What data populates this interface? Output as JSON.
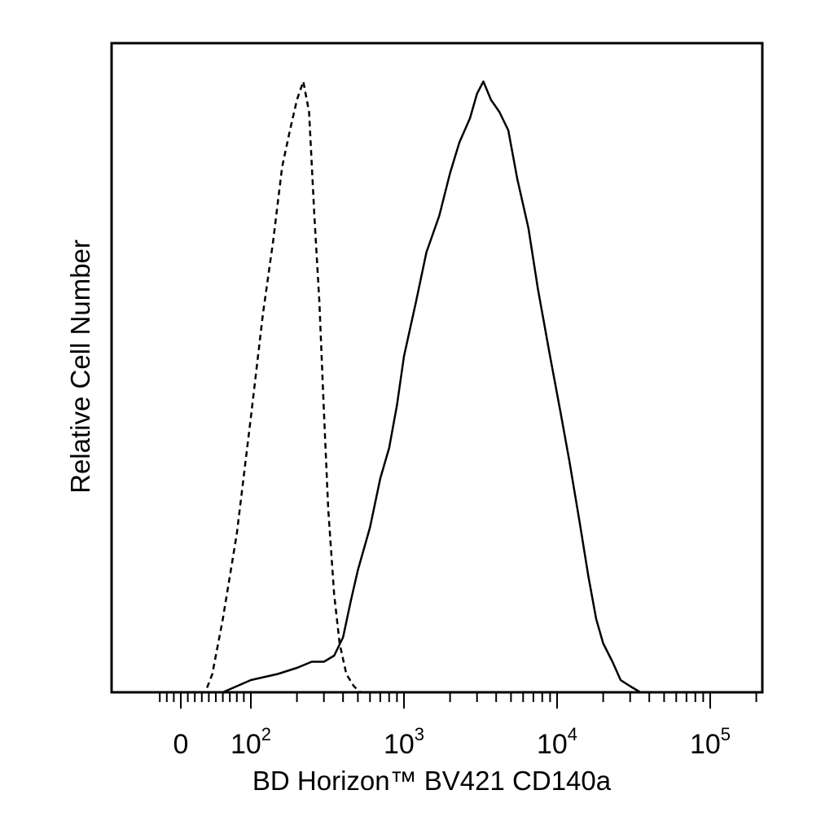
{
  "chart_data": {
    "type": "line",
    "title": "",
    "xlabel": "BD Horizon™ BV421 CD140a",
    "ylabel": "Relative Cell Number",
    "x_scale": "biexponential",
    "xlim": [
      -40,
      250000
    ],
    "ylim": [
      0,
      1.0
    ],
    "grid": false,
    "legend": "none",
    "x_tick_labels": [
      {
        "value": 0,
        "base": "0",
        "exp": ""
      },
      {
        "value": 100,
        "base": "10",
        "exp": "2"
      },
      {
        "value": 1000,
        "base": "10",
        "exp": "3"
      },
      {
        "value": 10000,
        "base": "10",
        "exp": "4"
      },
      {
        "value": 100000,
        "base": "10",
        "exp": "5"
      }
    ],
    "series": [
      {
        "style": "dashed",
        "color": "#000000",
        "x": [
          35,
          45,
          60,
          80,
          100,
          120,
          140,
          160,
          180,
          200,
          220,
          240,
          260,
          280,
          300,
          320,
          350,
          380,
          420,
          470,
          520,
          600
        ],
        "y": [
          0.0,
          0.03,
          0.12,
          0.26,
          0.45,
          0.62,
          0.74,
          0.86,
          0.92,
          0.97,
          1.0,
          0.95,
          0.78,
          0.64,
          0.46,
          0.3,
          0.16,
          0.08,
          0.03,
          0.01,
          0.0,
          0.0
        ]
      },
      {
        "style": "solid",
        "color": "#000000",
        "x": [
          60,
          100,
          150,
          200,
          250,
          300,
          350,
          400,
          450,
          500,
          600,
          700,
          800,
          900,
          1000,
          1200,
          1400,
          1700,
          2000,
          2300,
          2700,
          3000,
          3300,
          3700,
          4200,
          4800,
          5500,
          6500,
          7500,
          9000,
          10500,
          12000,
          14000,
          16000,
          18000,
          20000,
          23000,
          26000,
          30000,
          35000,
          40000
        ],
        "y": [
          0.0,
          0.02,
          0.03,
          0.04,
          0.05,
          0.05,
          0.06,
          0.09,
          0.15,
          0.2,
          0.27,
          0.35,
          0.4,
          0.47,
          0.55,
          0.64,
          0.72,
          0.78,
          0.85,
          0.9,
          0.94,
          0.98,
          1.0,
          0.97,
          0.95,
          0.92,
          0.84,
          0.76,
          0.66,
          0.55,
          0.46,
          0.38,
          0.28,
          0.19,
          0.12,
          0.08,
          0.05,
          0.02,
          0.01,
          0.0,
          0.0
        ]
      }
    ]
  }
}
